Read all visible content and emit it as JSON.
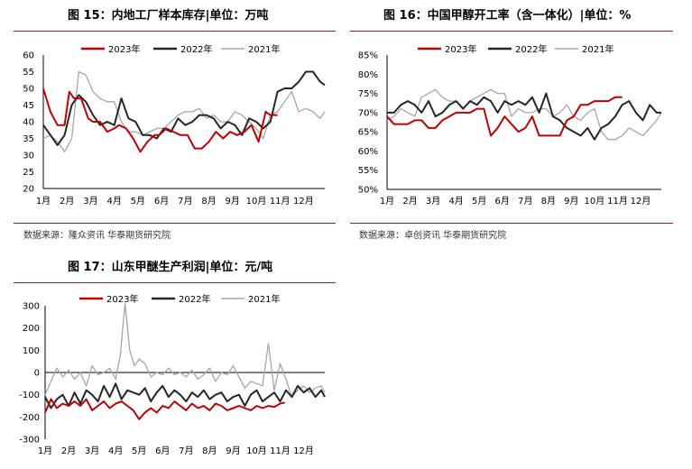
{
  "panels": [
    {
      "title": "图 15：内地工厂样本库存|单位：万吨",
      "source": "数据来源：隆众资讯 华泰期货研究院"
    },
    {
      "title": "图 16：中国甲醇开工率（含一体化）|单位：%",
      "source": "数据来源：卓创资讯 华泰期货研究院"
    },
    {
      "title": "图 17：山东甲醚生产利润|单位：元/吨",
      "source": ""
    }
  ],
  "colors": {
    "s2023": "#c00000",
    "s2022": "#262626",
    "s2021": "#a6a6a6",
    "rule": "#a6192e"
  },
  "chart_data": [
    {
      "type": "line",
      "title": "图 15：内地工厂样本库存|单位：万吨",
      "x_ticks": [
        "1月",
        "2月",
        "3月",
        "4月",
        "5月",
        "6月",
        "7月",
        "8月",
        "9月",
        "10月",
        "11月",
        "12月"
      ],
      "ylim": [
        20,
        60
      ],
      "y_ticks": [
        "20",
        "25",
        "30",
        "35",
        "40",
        "45",
        "50",
        "55",
        "60"
      ],
      "legend": "top",
      "series": [
        {
          "name": "2023年",
          "x": [
            0,
            0.3,
            0.6,
            0.9,
            1.1,
            1.3,
            1.6,
            1.9,
            2.1,
            2.4,
            2.7,
            3.0,
            3.2,
            3.5,
            3.8,
            4.1,
            4.4,
            4.7,
            4.9,
            5.2,
            5.5,
            5.8,
            6.1,
            6.4,
            6.7,
            7.0,
            7.3,
            7.6,
            7.9,
            8.2,
            8.5,
            8.8,
            9.1,
            9.4,
            9.6,
            9.9
          ],
          "y": [
            50,
            43,
            39,
            39,
            49,
            47,
            47,
            41,
            40,
            40,
            37,
            38,
            39,
            38,
            35,
            31,
            34,
            36,
            36,
            38,
            37,
            36,
            36,
            32,
            32,
            34,
            37,
            35,
            37,
            36,
            37,
            39,
            34,
            43,
            42,
            42
          ]
        },
        {
          "name": "2022年",
          "x": [
            0,
            0.3,
            0.6,
            0.9,
            1.2,
            1.5,
            1.8,
            2.1,
            2.4,
            2.7,
            3.0,
            3.3,
            3.6,
            3.9,
            4.2,
            4.5,
            4.8,
            5.1,
            5.4,
            5.7,
            6.0,
            6.3,
            6.6,
            6.9,
            7.2,
            7.5,
            7.8,
            8.1,
            8.4,
            8.7,
            9.0,
            9.3,
            9.6,
            9.9,
            10.2,
            10.5,
            10.8,
            11.1,
            11.4,
            11.7,
            11.9
          ],
          "y": [
            39,
            36,
            33,
            36,
            45,
            48,
            46,
            42,
            39,
            40,
            39,
            47,
            41,
            40,
            36,
            36,
            35,
            38,
            37,
            41,
            39,
            40,
            42,
            42,
            41,
            38,
            40,
            39,
            36,
            41,
            40,
            38,
            40,
            49,
            50,
            50,
            52,
            55,
            55,
            52,
            51
          ]
        },
        {
          "name": "2021年",
          "x": [
            0,
            0.3,
            0.6,
            0.9,
            1.2,
            1.5,
            1.8,
            2.1,
            2.4,
            2.7,
            3.0,
            3.3,
            3.6,
            3.9,
            4.2,
            4.5,
            4.8,
            5.1,
            5.4,
            5.7,
            6.0,
            6.3,
            6.6,
            6.9,
            7.2,
            7.5,
            7.8,
            8.1,
            8.4,
            8.7,
            9.0,
            9.3,
            9.6,
            9.9,
            10.2,
            10.5,
            10.8,
            11.1,
            11.4,
            11.7,
            11.9
          ],
          "y": [
            35,
            36,
            34,
            31,
            35,
            55,
            54,
            49,
            47,
            46,
            46,
            40,
            37,
            37,
            36,
            37,
            38,
            38,
            40,
            42,
            43,
            43,
            44,
            41,
            42,
            40,
            40,
            43,
            42,
            40,
            38,
            35,
            42,
            43,
            46,
            49,
            43,
            44,
            43,
            41,
            43
          ]
        }
      ]
    },
    {
      "type": "line",
      "title": "图 16：中国甲醇开工率（含一体化）|单位：%",
      "x_ticks": [
        "1月",
        "2月",
        "3月",
        "4月",
        "5月",
        "6月",
        "7月",
        "8月",
        "9月",
        "10月",
        "11月",
        "12月"
      ],
      "ylim": [
        50,
        85
      ],
      "y_ticks": [
        "50%",
        "55%",
        "60%",
        "65%",
        "70%",
        "75%",
        "80%",
        "85%"
      ],
      "legend": "top",
      "series": [
        {
          "name": "2023年",
          "x": [
            0,
            0.3,
            0.6,
            0.9,
            1.2,
            1.5,
            1.8,
            2.1,
            2.4,
            2.7,
            3.0,
            3.3,
            3.6,
            3.9,
            4.2,
            4.5,
            4.8,
            5.1,
            5.4,
            5.7,
            6.0,
            6.3,
            6.6,
            6.9,
            7.2,
            7.5,
            7.8,
            8.1,
            8.4,
            8.7,
            9.0,
            9.3,
            9.6,
            9.9,
            10.2
          ],
          "y": [
            69,
            67,
            67,
            67,
            68,
            68,
            66,
            66,
            68,
            69,
            70,
            70,
            70,
            71,
            71,
            64,
            66,
            69,
            67,
            65,
            66,
            69,
            64,
            64,
            64,
            64,
            68,
            69,
            72,
            72,
            73,
            73,
            73,
            74,
            74
          ]
        },
        {
          "name": "2022年",
          "x": [
            0,
            0.3,
            0.6,
            0.9,
            1.2,
            1.5,
            1.8,
            2.1,
            2.4,
            2.7,
            3.0,
            3.3,
            3.6,
            3.9,
            4.2,
            4.5,
            4.8,
            5.1,
            5.4,
            5.7,
            6.0,
            6.3,
            6.6,
            6.9,
            7.2,
            7.5,
            7.8,
            8.1,
            8.4,
            8.7,
            9.0,
            9.3,
            9.6,
            9.9,
            10.2,
            10.5,
            10.8,
            11.1,
            11.4,
            11.7,
            11.9
          ],
          "y": [
            70,
            70,
            72,
            73,
            72,
            70,
            73,
            69,
            70,
            72,
            73,
            71,
            73,
            72,
            74,
            73,
            70,
            73,
            72,
            73,
            72,
            74,
            70,
            75,
            69,
            68,
            66,
            65,
            64,
            66,
            63,
            66,
            67,
            69,
            72,
            73,
            70,
            68,
            72,
            70,
            70
          ]
        },
        {
          "name": "2021年",
          "x": [
            0,
            0.3,
            0.6,
            0.9,
            1.2,
            1.5,
            1.8,
            2.1,
            2.4,
            2.7,
            3.0,
            3.3,
            3.6,
            3.9,
            4.2,
            4.5,
            4.8,
            5.1,
            5.4,
            5.7,
            6.0,
            6.3,
            6.6,
            6.9,
            7.2,
            7.5,
            7.8,
            8.1,
            8.4,
            8.7,
            9.0,
            9.3,
            9.6,
            9.9,
            10.2,
            10.5,
            10.8,
            11.1,
            11.4,
            11.7,
            11.9
          ],
          "y": [
            68,
            69,
            71,
            70,
            69,
            74,
            75,
            76,
            74,
            73,
            73,
            71,
            73,
            74,
            75,
            76,
            75,
            75,
            69,
            71,
            70,
            70,
            71,
            71,
            69,
            70,
            72,
            69,
            68,
            70,
            71,
            65,
            63,
            63,
            64,
            66,
            65,
            64,
            66,
            68,
            70
          ]
        }
      ]
    },
    {
      "type": "line",
      "title": "图 17：山东甲醚生产利润|单位：元/吨",
      "x_ticks": [
        "1月",
        "2月",
        "3月",
        "4月",
        "5月",
        "6月",
        "7月",
        "8月",
        "9月",
        "10月",
        "11月",
        "12月"
      ],
      "ylim": [
        -300,
        300
      ],
      "y_ticks": [
        "-300",
        "-200",
        "-100",
        "0",
        "100",
        "200",
        "300"
      ],
      "legend": "top",
      "series": [
        {
          "name": "2023年",
          "x": [
            0,
            0.25,
            0.5,
            0.75,
            1.0,
            1.25,
            1.5,
            1.75,
            2.0,
            2.25,
            2.5,
            2.75,
            3.0,
            3.25,
            3.5,
            3.75,
            4.0,
            4.25,
            4.5,
            4.75,
            5.0,
            5.25,
            5.5,
            5.75,
            6.0,
            6.25,
            6.5,
            6.75,
            7.0,
            7.25,
            7.5,
            7.75,
            8.0,
            8.25,
            8.5,
            8.75,
            9.0,
            9.25,
            9.5,
            9.75,
            10.0,
            10.2
          ],
          "y": [
            -180,
            -120,
            -160,
            -140,
            -150,
            -130,
            -150,
            -120,
            -170,
            -150,
            -130,
            -160,
            -140,
            -130,
            -150,
            -170,
            -210,
            -180,
            -160,
            -180,
            -150,
            -160,
            -130,
            -150,
            -170,
            -140,
            -160,
            -150,
            -170,
            -140,
            -150,
            -170,
            -160,
            -150,
            -160,
            -170,
            -150,
            -160,
            -150,
            -155,
            -140,
            -135
          ]
        },
        {
          "name": "2022年",
          "x": [
            0,
            0.25,
            0.5,
            0.75,
            1.0,
            1.25,
            1.5,
            1.75,
            2.0,
            2.25,
            2.5,
            2.75,
            3.0,
            3.25,
            3.5,
            3.75,
            4.0,
            4.25,
            4.5,
            4.75,
            5.0,
            5.25,
            5.5,
            5.75,
            6.0,
            6.25,
            6.5,
            6.75,
            7.0,
            7.25,
            7.5,
            7.75,
            8.0,
            8.25,
            8.5,
            8.75,
            9.0,
            9.25,
            9.5,
            9.75,
            10.0,
            10.25,
            10.5,
            10.75,
            11.0,
            11.25,
            11.5,
            11.75,
            11.9
          ],
          "y": [
            -110,
            -160,
            -120,
            -100,
            -150,
            -90,
            -140,
            -80,
            -100,
            -130,
            -60,
            -110,
            -50,
            -120,
            -80,
            -90,
            -100,
            -70,
            -130,
            -90,
            -60,
            -110,
            -80,
            -100,
            -130,
            -90,
            -110,
            -80,
            -120,
            -100,
            -90,
            -130,
            -110,
            -100,
            -150,
            -100,
            -80,
            -130,
            -110,
            -90,
            -130,
            -80,
            -110,
            -60,
            -90,
            -70,
            -110,
            -80,
            -110
          ]
        },
        {
          "name": "2021年",
          "x": [
            0,
            0.25,
            0.5,
            0.75,
            1.0,
            1.25,
            1.5,
            1.75,
            2.0,
            2.25,
            2.5,
            2.75,
            3.0,
            3.2,
            3.4,
            3.6,
            3.8,
            4.0,
            4.25,
            4.5,
            4.75,
            5.0,
            5.25,
            5.5,
            5.75,
            6.0,
            6.25,
            6.5,
            6.75,
            7.0,
            7.25,
            7.5,
            7.75,
            8.0,
            8.25,
            8.5,
            8.75,
            9.0,
            9.25,
            9.5,
            9.75,
            10.0,
            10.25,
            10.5,
            10.75,
            11.0,
            11.25,
            11.5,
            11.75,
            11.9
          ],
          "y": [
            -100,
            -40,
            20,
            -20,
            10,
            -30,
            0,
            -60,
            30,
            -10,
            0,
            20,
            -30,
            80,
            310,
            100,
            30,
            60,
            40,
            -20,
            0,
            -10,
            20,
            -10,
            0,
            -20,
            10,
            -30,
            -10,
            20,
            -40,
            0,
            -10,
            30,
            -20,
            -70,
            -40,
            -50,
            -60,
            130,
            -80,
            40,
            -30,
            -110,
            -80,
            -60,
            -90,
            -70,
            -60,
            -90
          ]
        }
      ]
    }
  ]
}
